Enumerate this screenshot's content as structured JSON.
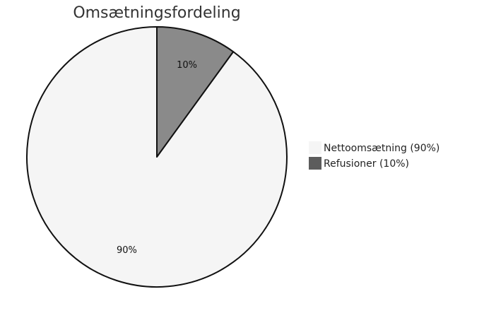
{
  "chart_data": {
    "type": "pie",
    "title": "Omsætningsfordeling",
    "legend_position": "right",
    "start_angle_deg": 0,
    "direction": "counterclockwise",
    "slices": [
      {
        "label": "Nettoomsætning",
        "value": 90,
        "display_label": "90%",
        "legend_label": "Nettoomsætning (90%)",
        "color": "#f5f5f5",
        "legend_color": "#f5f5f5"
      },
      {
        "label": "Refusioner",
        "value": 10,
        "display_label": "10%",
        "legend_label": "Refusioner (10%)",
        "color": "#8a8a8a",
        "legend_color": "#5c5c5c"
      }
    ],
    "stroke_color": "#111111"
  }
}
